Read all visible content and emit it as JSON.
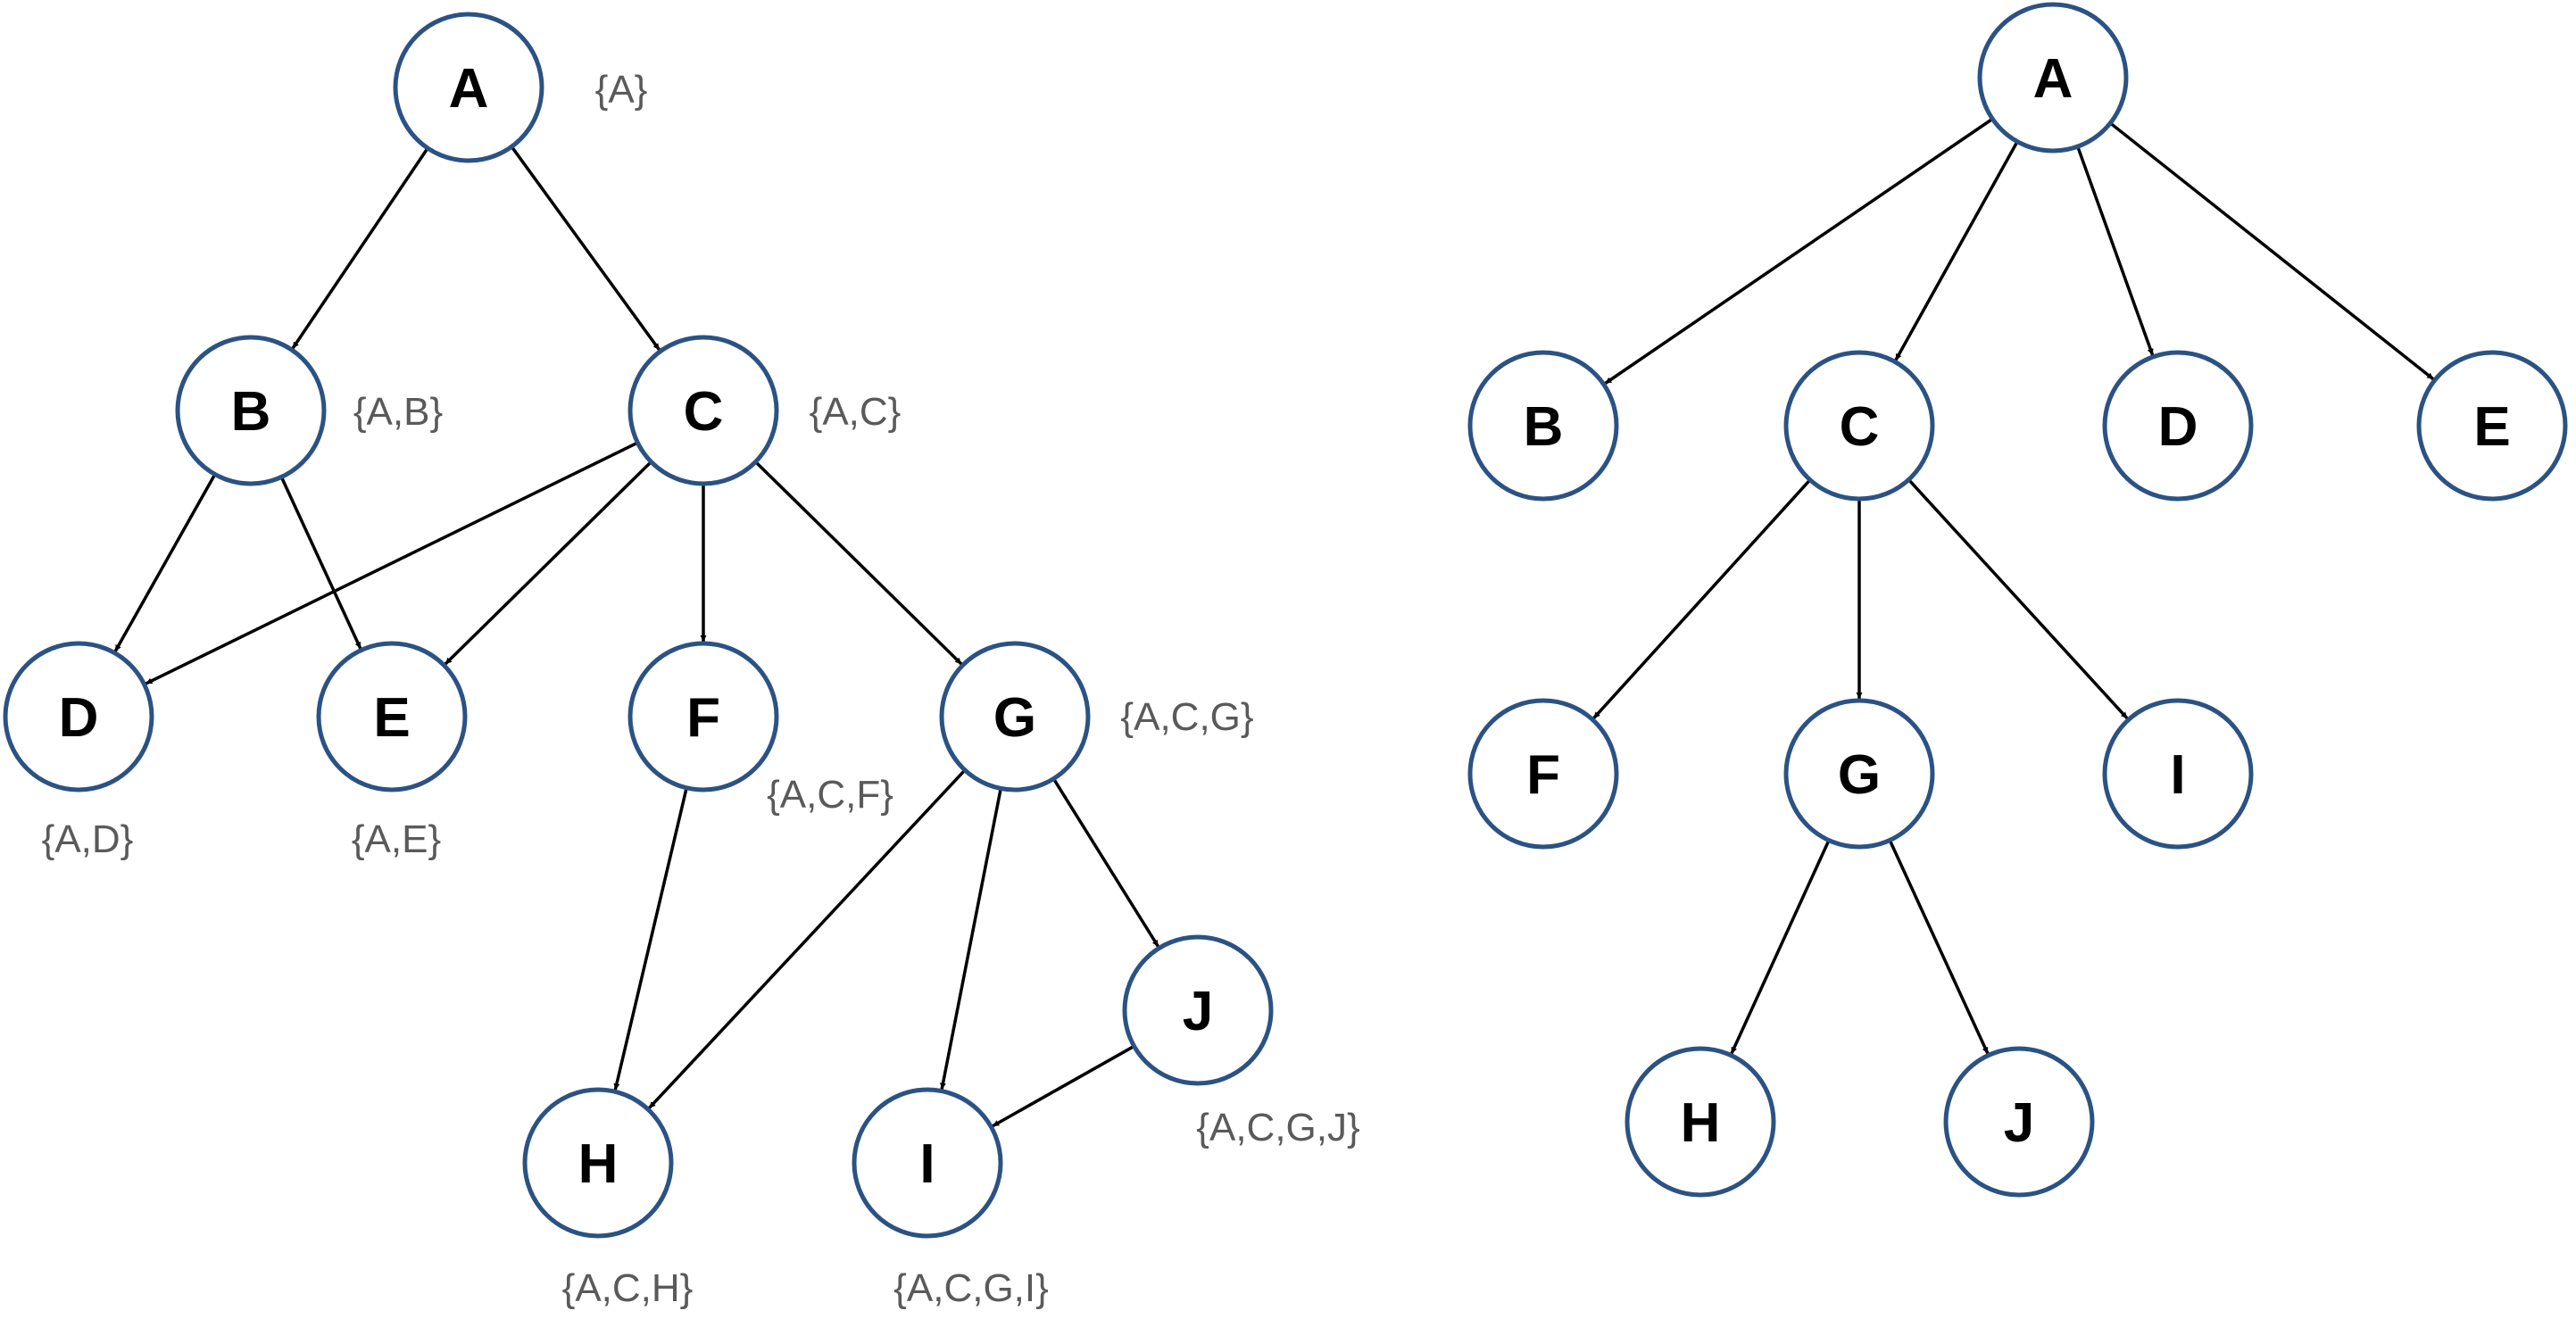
{
  "colors": {
    "node_stroke": "#2b5283",
    "node_fill": "#ffffff",
    "edge": "#000000",
    "label": "#000000",
    "annotation": "#5a5a5a"
  },
  "left_graph": {
    "nodes": [
      {
        "id": "A",
        "label": "A",
        "annotation": "{A}"
      },
      {
        "id": "B",
        "label": "B",
        "annotation": "{A,B}"
      },
      {
        "id": "C",
        "label": "C",
        "annotation": "{A,C}"
      },
      {
        "id": "D",
        "label": "D",
        "annotation": "{A,D}"
      },
      {
        "id": "E",
        "label": "E",
        "annotation": "{A,E}"
      },
      {
        "id": "F",
        "label": "F",
        "annotation": "{A,C,F}"
      },
      {
        "id": "G",
        "label": "G",
        "annotation": "{A,C,G}"
      },
      {
        "id": "H",
        "label": "H",
        "annotation": "{A,C,H}"
      },
      {
        "id": "I",
        "label": "I",
        "annotation": "{A,C,G,I}"
      },
      {
        "id": "J",
        "label": "J",
        "annotation": "{A,C,G,J}"
      }
    ],
    "edges": [
      [
        "A",
        "B"
      ],
      [
        "A",
        "C"
      ],
      [
        "B",
        "D"
      ],
      [
        "B",
        "E"
      ],
      [
        "C",
        "D"
      ],
      [
        "C",
        "E"
      ],
      [
        "C",
        "F"
      ],
      [
        "C",
        "G"
      ],
      [
        "F",
        "H"
      ],
      [
        "G",
        "H"
      ],
      [
        "G",
        "I"
      ],
      [
        "G",
        "J"
      ],
      [
        "J",
        "I"
      ]
    ]
  },
  "right_graph": {
    "nodes": [
      {
        "id": "A",
        "label": "A"
      },
      {
        "id": "B",
        "label": "B"
      },
      {
        "id": "C",
        "label": "C"
      },
      {
        "id": "D",
        "label": "D"
      },
      {
        "id": "E",
        "label": "E"
      },
      {
        "id": "F",
        "label": "F"
      },
      {
        "id": "G",
        "label": "G"
      },
      {
        "id": "I",
        "label": "I"
      },
      {
        "id": "H",
        "label": "H"
      },
      {
        "id": "J",
        "label": "J"
      }
    ],
    "edges": [
      [
        "A",
        "B"
      ],
      [
        "A",
        "C"
      ],
      [
        "A",
        "D"
      ],
      [
        "A",
        "E"
      ],
      [
        "C",
        "F"
      ],
      [
        "C",
        "G"
      ],
      [
        "C",
        "I"
      ],
      [
        "G",
        "H"
      ],
      [
        "G",
        "J"
      ]
    ]
  }
}
